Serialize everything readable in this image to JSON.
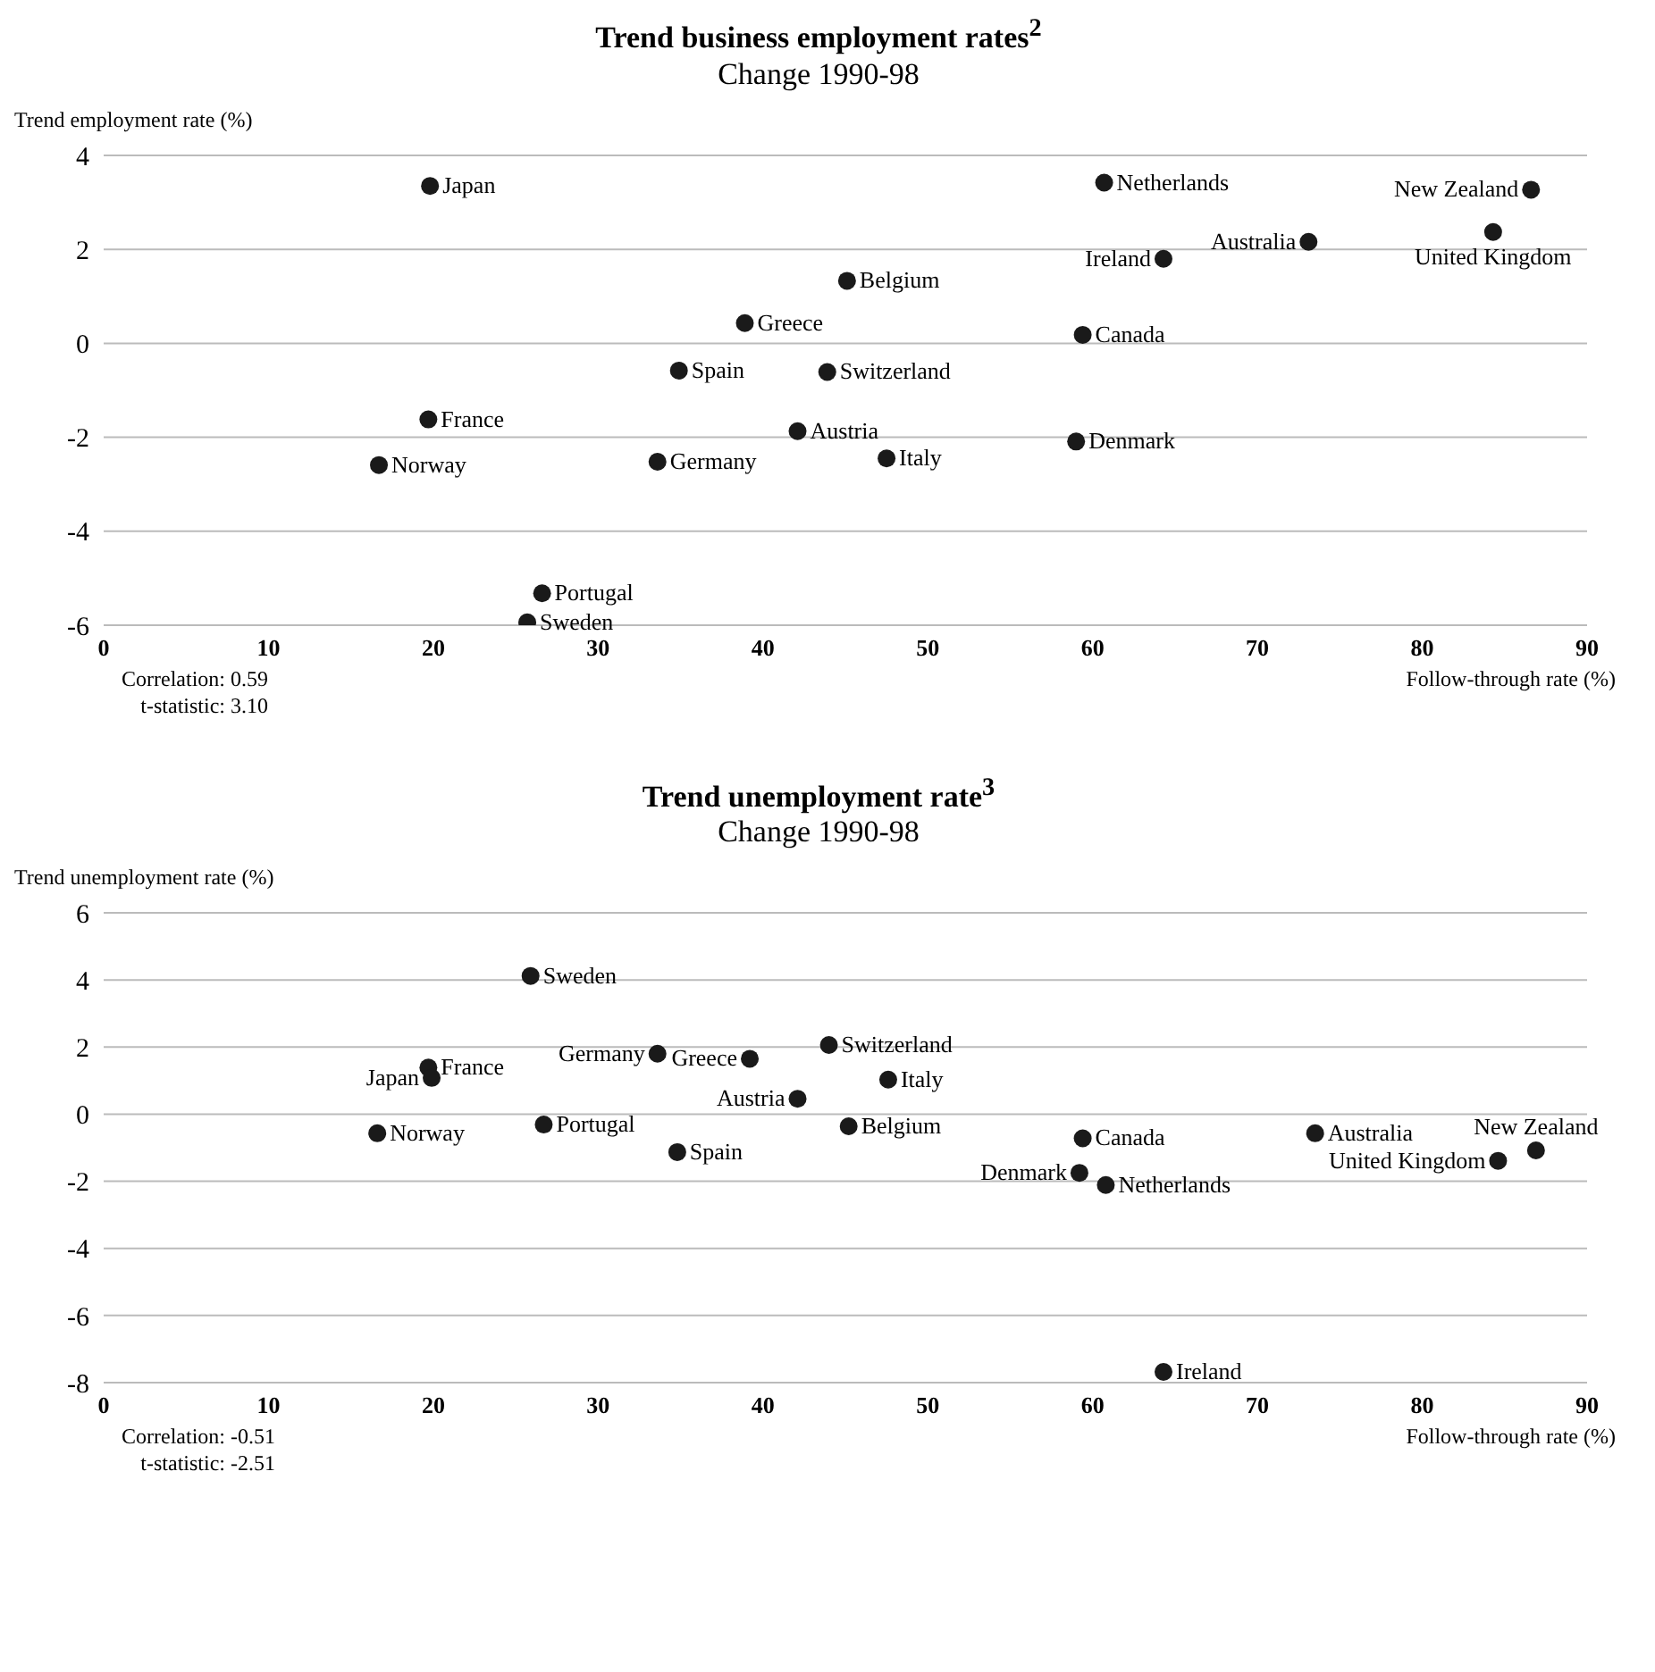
{
  "chart_data": [
    {
      "type": "scatter",
      "title": "Trend business employment rates$^{2}$",
      "subtitle": "Change 1990-98",
      "ylabel": "Trend employment rate (%)",
      "xlabel": "Follow-through rate (%)",
      "xlim": [
        0,
        90
      ],
      "xticks": [
        0,
        10,
        20,
        30,
        40,
        50,
        60,
        70,
        80,
        90
      ],
      "ylim": [
        -6,
        4
      ],
      "yticks": [
        -6,
        -4,
        -2,
        0,
        2,
        4
      ],
      "grid": "y",
      "marker": "circle",
      "series": [
        {
          "color": "#1a1a1a",
          "x": [
            19.8,
            60.7,
            86.6,
            84.3,
            73.1,
            64.3,
            45.1,
            38.9,
            59.4,
            34.9,
            43.9,
            19.7,
            42.1,
            59.0,
            16.7,
            33.6,
            47.5,
            26.6,
            25.7
          ],
          "values": [
            3.35,
            3.42,
            3.27,
            2.37,
            2.16,
            1.8,
            1.33,
            0.43,
            0.18,
            -0.58,
            -0.61,
            -1.62,
            -1.87,
            -2.09,
            -2.59,
            -2.52,
            -2.45,
            -5.32,
            -5.94
          ]
        }
      ],
      "annotations": [
        {
          "text": "Japan",
          "x": 19.8,
          "y": 3.35
        },
        {
          "text": "Netherlands",
          "x": 60.7,
          "y": 3.42
        },
        {
          "text": "New Zealand",
          "x": 86.6,
          "y": 3.27
        },
        {
          "text": "United Kingdom",
          "x": 84.3,
          "y": 2.37
        },
        {
          "text": "Australia",
          "x": 73.1,
          "y": 2.16
        },
        {
          "text": "Ireland",
          "x": 64.3,
          "y": 1.8
        },
        {
          "text": "Belgium",
          "x": 45.1,
          "y": 1.33
        },
        {
          "text": "Greece",
          "x": 38.9,
          "y": 0.43
        },
        {
          "text": "Canada",
          "x": 59.4,
          "y": 0.18
        },
        {
          "text": "Spain",
          "x": 34.9,
          "y": -0.58
        },
        {
          "text": "Switzerland",
          "x": 43.9,
          "y": -0.61
        },
        {
          "text": "France",
          "x": 19.7,
          "y": -1.62
        },
        {
          "text": "Austria",
          "x": 42.1,
          "y": -1.87
        },
        {
          "text": "Denmark",
          "x": 59.0,
          "y": -2.09
        },
        {
          "text": "Norway",
          "x": 16.7,
          "y": -2.59
        },
        {
          "text": "Germany",
          "x": 33.6,
          "y": -2.52
        },
        {
          "text": "Italy",
          "x": 47.5,
          "y": -2.45
        },
        {
          "text": "Portugal",
          "x": 26.6,
          "y": -5.32
        },
        {
          "text": "Sweden",
          "x": 25.7,
          "y": -5.94
        },
        "Correlation: 0.59",
        "t-statistic: 3.10"
      ]
    },
    {
      "type": "scatter",
      "title": "Trend unemployment rate$^{3}$",
      "subtitle": "Change 1990-98",
      "ylabel": "Trend unemployment rate (%)",
      "xlabel": "Follow-through rate (%)",
      "xlim": [
        0,
        90
      ],
      "xticks": [
        0,
        10,
        20,
        30,
        40,
        50,
        60,
        70,
        80,
        90
      ],
      "ylim": [
        -8,
        6
      ],
      "yticks": [
        -8,
        -6,
        -4,
        -2,
        0,
        2,
        4,
        6
      ],
      "grid": "y",
      "marker": "circle",
      "series": [
        {
          "color": "#1a1a1a",
          "x": [
            25.9,
            33.6,
            44.0,
            39.2,
            19.7,
            19.9,
            47.6,
            42.1,
            16.6,
            26.7,
            45.2,
            34.8,
            59.4,
            73.5,
            86.9,
            84.6,
            59.2,
            60.8,
            64.3
          ],
          "values": [
            4.12,
            1.8,
            2.06,
            1.65,
            1.39,
            1.08,
            1.03,
            0.46,
            -0.57,
            -0.31,
            -0.36,
            -1.13,
            -0.72,
            -0.57,
            -1.08,
            -1.39,
            -1.75,
            -2.11,
            -7.68
          ]
        }
      ],
      "annotations": [
        {
          "text": "Sweden",
          "x": 25.9,
          "y": 4.12
        },
        {
          "text": "Germany",
          "x": 33.6,
          "y": 1.8
        },
        {
          "text": "Switzerland",
          "x": 44.0,
          "y": 2.06
        },
        {
          "text": "Greece",
          "x": 39.2,
          "y": 1.65
        },
        {
          "text": "France",
          "x": 19.7,
          "y": 1.39
        },
        {
          "text": "Japan",
          "x": 19.9,
          "y": 1.08
        },
        {
          "text": "Italy",
          "x": 47.6,
          "y": 1.03
        },
        {
          "text": "Austria",
          "x": 42.1,
          "y": 0.46
        },
        {
          "text": "Norway",
          "x": 16.6,
          "y": -0.57
        },
        {
          "text": "Portugal",
          "x": 26.7,
          "y": -0.31
        },
        {
          "text": "Belgium",
          "x": 45.2,
          "y": -0.36
        },
        {
          "text": "Spain",
          "x": 34.8,
          "y": -1.13
        },
        {
          "text": "Canada",
          "x": 59.4,
          "y": -0.72
        },
        {
          "text": "Australia",
          "x": 73.5,
          "y": -0.57
        },
        {
          "text": "New Zealand",
          "x": 86.9,
          "y": -1.08
        },
        {
          "text": "United Kingdom",
          "x": 84.6,
          "y": -1.39
        },
        {
          "text": "Denmark",
          "x": 59.2,
          "y": -1.75
        },
        {
          "text": "Netherlands",
          "x": 60.8,
          "y": -2.11
        },
        {
          "text": "Ireland",
          "x": 64.3,
          "y": -7.68
        },
        "Correlation: -0.51",
        "t-statistic: -2.51"
      ]
    }
  ]
}
